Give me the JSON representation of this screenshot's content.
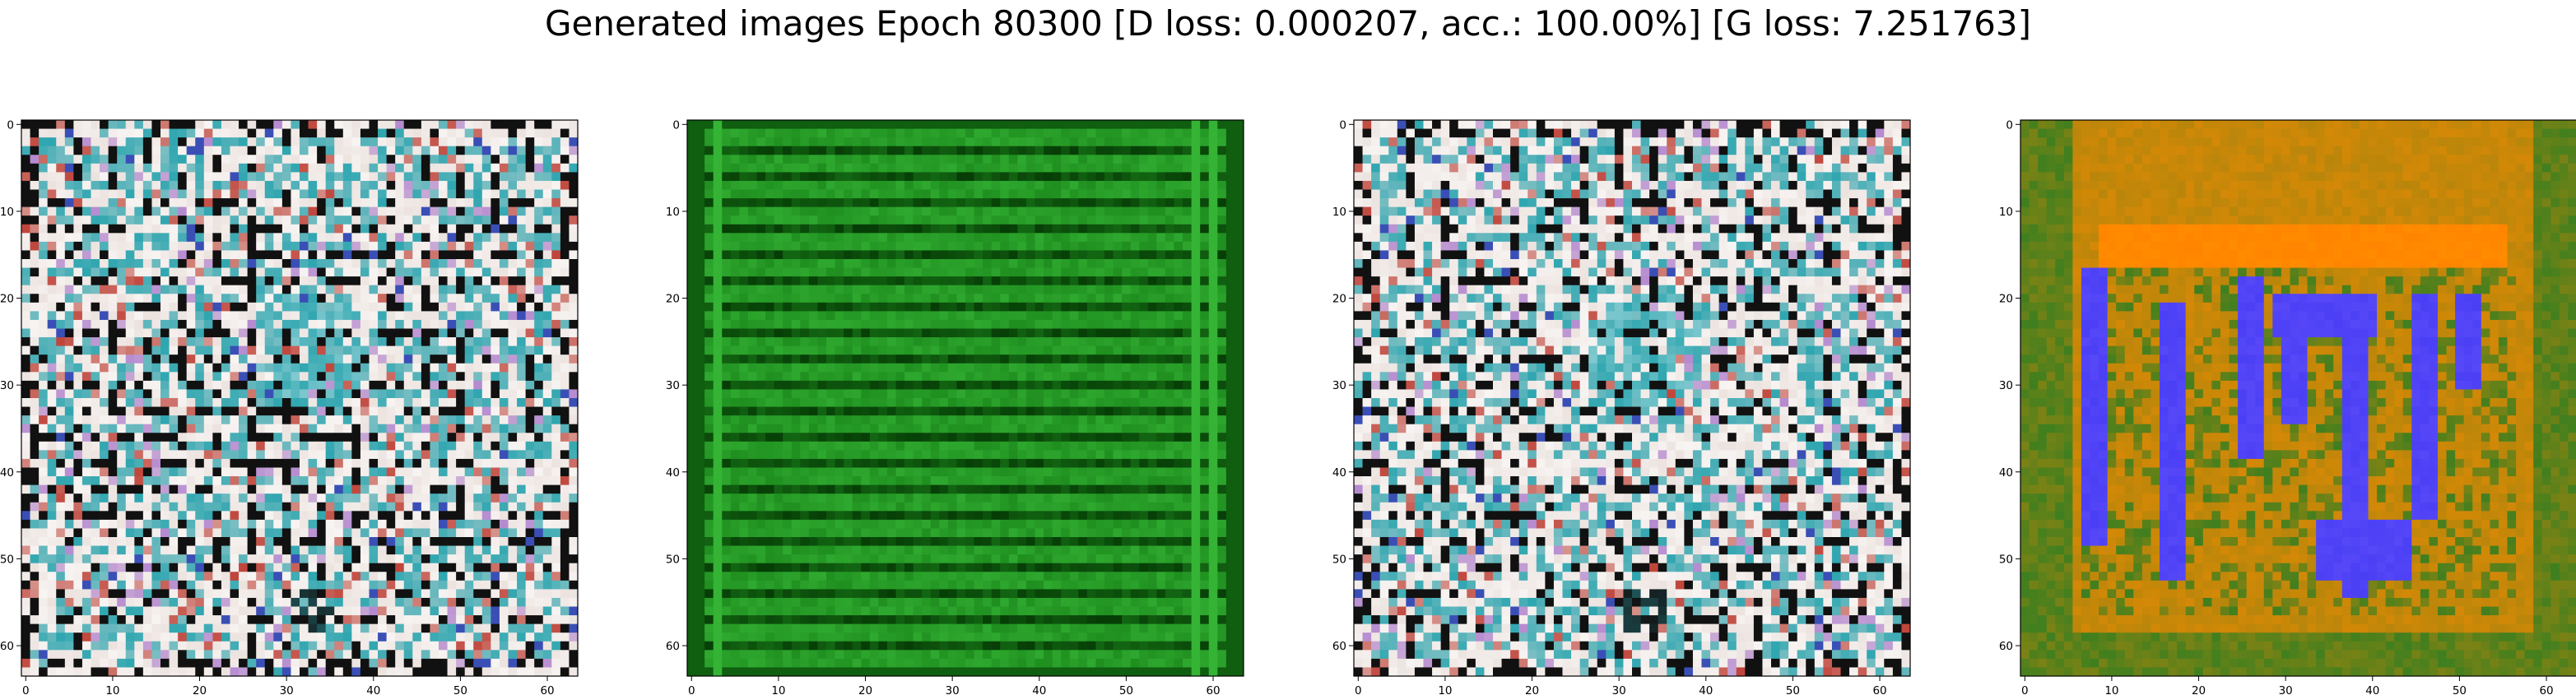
{
  "figure": {
    "suptitle": "Generated images Epoch 80300 [D loss: 0.000207, acc.: 100.00%] [G loss: 7.251763]"
  },
  "chart_data": [
    {
      "type": "heatmap",
      "title": "",
      "xlabel": "",
      "ylabel": "",
      "xlim": [
        -0.5,
        63.5
      ],
      "ylim": [
        63.5,
        -0.5
      ],
      "x_ticks": [
        0,
        10,
        20,
        30,
        40,
        50,
        60
      ],
      "y_ticks": [
        0,
        10,
        20,
        30,
        40,
        50,
        60
      ],
      "grid": false,
      "palette": {
        "base": "#ece3df",
        "dark": "#111111",
        "cyan": "#2fa6b0",
        "red": "#c0453b",
        "blue": "#3a4fb5",
        "purple": "#b58ad0"
      },
      "pattern": "noisy-white"
    },
    {
      "type": "heatmap",
      "title": "",
      "xlabel": "",
      "ylabel": "",
      "xlim": [
        -0.5,
        63.5
      ],
      "ylim": [
        63.5,
        -0.5
      ],
      "x_ticks": [
        0,
        10,
        20,
        30,
        40,
        50,
        60
      ],
      "y_ticks": [
        0,
        10,
        20,
        30,
        40,
        50,
        60
      ],
      "grid": false,
      "palette": {
        "base": "#1f8f1f",
        "dark": "#063d06",
        "light": "#3fc23f"
      },
      "pattern": "green-stripes"
    },
    {
      "type": "heatmap",
      "title": "",
      "xlabel": "",
      "ylabel": "",
      "xlim": [
        -0.5,
        63.5
      ],
      "ylim": [
        63.5,
        -0.5
      ],
      "x_ticks": [
        0,
        10,
        20,
        30,
        40,
        50,
        60
      ],
      "y_ticks": [
        0,
        10,
        20,
        30,
        40,
        50,
        60
      ],
      "grid": false,
      "palette": {
        "base": "#ece3df",
        "dark": "#111111",
        "cyan": "#2fa6b0",
        "red": "#c0453b",
        "blue": "#3a4fb5",
        "purple": "#b58ad0"
      },
      "pattern": "noisy-white"
    },
    {
      "type": "heatmap",
      "title": "",
      "xlabel": "",
      "ylabel": "",
      "xlim": [
        -0.5,
        63.5
      ],
      "ylim": [
        63.5,
        -0.5
      ],
      "x_ticks": [
        0,
        10,
        20,
        30,
        40,
        50,
        60
      ],
      "y_ticks": [
        0,
        10,
        20,
        30,
        40,
        50,
        60
      ],
      "grid": false,
      "palette": {
        "base": "#b8860b",
        "green": "#3f7f1f",
        "orange": "#ff8c00",
        "blue": "#4b3ff5"
      },
      "pattern": "orange-blue-blobs"
    }
  ]
}
